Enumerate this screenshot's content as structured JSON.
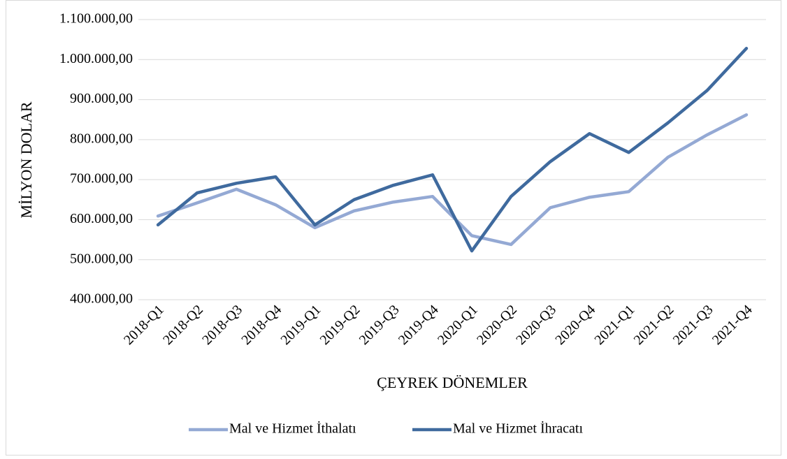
{
  "chart_data": {
    "type": "line",
    "xlabel": "ÇEYREK DÖNEMLER",
    "ylabel": "MİLYON DOLAR",
    "categories": [
      "2018-Q1",
      "2018-Q2",
      "2018-Q3",
      "2018-Q4",
      "2019-Q1",
      "2019-Q2",
      "2019-Q3",
      "2019-Q4",
      "2020-Q1",
      "2020-Q2",
      "2020-Q3",
      "2020-Q4",
      "2021-Q1",
      "2021-Q2",
      "2021-Q3",
      "2021-Q4"
    ],
    "series": [
      {
        "name": "Mal ve Hizmet İthalatı",
        "color": "#94a9d4",
        "values": [
          609000,
          642000,
          676000,
          637000,
          580000,
          622000,
          644000,
          658000,
          560000,
          538000,
          630000,
          656000,
          670000,
          756000,
          812000,
          862000
        ]
      },
      {
        "name": "Mal ve Hizmet İhracatı",
        "color": "#3f6a9e",
        "values": [
          587000,
          667000,
          691000,
          707000,
          587000,
          650000,
          686000,
          712000,
          522000,
          658000,
          745000,
          815000,
          768000,
          842000,
          923000,
          1028000
        ]
      }
    ],
    "ylim": [
      400000,
      1100000
    ],
    "yticks": [
      {
        "value": 400000,
        "label": "400.000,00"
      },
      {
        "value": 500000,
        "label": "500.000,00"
      },
      {
        "value": 600000,
        "label": "600.000,00"
      },
      {
        "value": 700000,
        "label": "700.000,00"
      },
      {
        "value": 800000,
        "label": "800.000,00"
      },
      {
        "value": 900000,
        "label": "900.000,00"
      },
      {
        "value": 1000000,
        "label": "1.000.000,00"
      },
      {
        "value": 1100000,
        "label": "1.100.000,00"
      }
    ],
    "grid": true,
    "legend": "bottom"
  }
}
